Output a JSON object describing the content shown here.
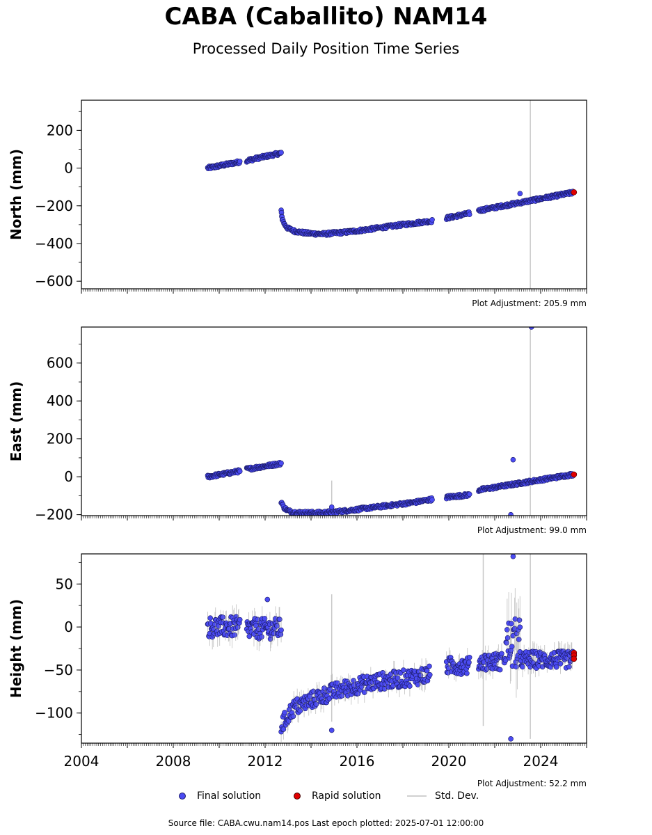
{
  "title": "CABA (Caballito) NAM14",
  "subtitle": "Processed Daily Position Time Series",
  "legend": {
    "final": "Final solution",
    "rapid": "Rapid solution",
    "std": "Std. Dev."
  },
  "footer": "Source file: CABA.cwu.nam14.pos  Last epoch plotted: 2025-07-01 12:00:00",
  "colors": {
    "final": "#4b4bf2",
    "final_edge": "#1a1a66",
    "rapid": "#e00000",
    "std": "#c8c8c8"
  },
  "chart_data": [
    {
      "type": "scatter",
      "ylabel": "North (mm)",
      "adjustment": "Plot Adjustment: 205.9 mm",
      "xlim": [
        2004,
        2026
      ],
      "ylim": [
        -640,
        360
      ],
      "yticks": [
        -600,
        -400,
        -200,
        0,
        200
      ],
      "segments": [
        {
          "x": [
            2009.5,
            2010.9
          ],
          "y": [
            0,
            33
          ]
        },
        {
          "x": [
            2011.2,
            2012.7
          ],
          "y": [
            40,
            80
          ]
        }
      ],
      "curve": {
        "x": [
          2012.7,
          2012.75,
          2012.85,
          2013.0,
          2013.3,
          2013.8,
          2014.5,
          2015.5,
          2016.5,
          2017.5,
          2018.5,
          2019.3
        ],
        "y": [
          -230,
          -270,
          -300,
          -320,
          -335,
          -345,
          -350,
          -340,
          -325,
          -308,
          -292,
          -280
        ]
      },
      "segments2": [
        {
          "x": [
            2019.9,
            2020.9
          ],
          "y": [
            -265,
            -240
          ]
        },
        {
          "x": [
            2021.3,
            2025.4
          ],
          "y": [
            -225,
            -130
          ]
        }
      ],
      "outliers": [
        {
          "x": 2023.1,
          "y": -135
        }
      ],
      "rapid": {
        "x": [
          2025.45
        ],
        "y": [
          -128
        ]
      },
      "stdlines": [
        {
          "x": 2023.55,
          "y0": -640,
          "y1": 360
        }
      ]
    },
    {
      "type": "scatter",
      "ylabel": "East (mm)",
      "adjustment": "Plot Adjustment: 99.0 mm",
      "xlim": [
        2004,
        2026
      ],
      "ylim": [
        -205,
        790
      ],
      "yticks": [
        -200,
        0,
        200,
        400,
        600
      ],
      "segments": [
        {
          "x": [
            2009.5,
            2010.9
          ],
          "y": [
            0,
            30
          ]
        },
        {
          "x": [
            2011.2,
            2012.7
          ],
          "y": [
            40,
            70
          ]
        }
      ],
      "curve": {
        "x": [
          2012.7,
          2012.8,
          2013.0,
          2013.3,
          2013.8,
          2014.5,
          2015.5,
          2016.5,
          2017.5,
          2018.5,
          2019.3
        ],
        "y": [
          -130,
          -160,
          -180,
          -188,
          -190,
          -190,
          -180,
          -165,
          -150,
          -135,
          -118
        ]
      },
      "segments2": [
        {
          "x": [
            2019.9,
            2020.9
          ],
          "y": [
            -108,
            -95
          ]
        },
        {
          "x": [
            2021.3,
            2025.4
          ],
          "y": [
            -70,
            12
          ]
        }
      ],
      "outliers": [
        {
          "x": 2022.8,
          "y": 90
        },
        {
          "x": 2022.7,
          "y": -200
        },
        {
          "x": 2014.9,
          "y": -160
        },
        {
          "x": 2023.6,
          "y": 790
        }
      ],
      "rapid": {
        "x": [
          2025.45
        ],
        "y": [
          12
        ]
      },
      "stdlines": [
        {
          "x": 2014.9,
          "y0": -190,
          "y1": -20
        },
        {
          "x": 2023.55,
          "y0": -205,
          "y1": 790
        }
      ]
    },
    {
      "type": "scatter",
      "ylabel": "Height (mm)",
      "adjustment": "Plot Adjustment: 52.2 mm",
      "xlim": [
        2004,
        2026
      ],
      "ylim": [
        -135,
        85
      ],
      "yticks": [
        -100,
        -50,
        0,
        50
      ],
      "xticks": [
        2004,
        2008,
        2012,
        2016,
        2020,
        2024
      ],
      "segments": [
        {
          "x": [
            2009.5,
            2010.9
          ],
          "y": [
            0,
            0
          ],
          "spread": 12
        },
        {
          "x": [
            2011.2,
            2012.7
          ],
          "y": [
            -2,
            -2
          ],
          "spread": 12
        }
      ],
      "curve": {
        "x": [
          2012.7,
          2013.2,
          2014.0,
          2015.0,
          2016.0,
          2017.0,
          2018.0,
          2019.2
        ],
        "y": [
          -115,
          -95,
          -85,
          -75,
          -68,
          -63,
          -60,
          -55
        ],
        "spread": 10
      },
      "segments2": [
        {
          "x": [
            2019.9,
            2020.9
          ],
          "y": [
            -45,
            -45
          ],
          "spread": 10
        },
        {
          "x": [
            2021.3,
            2022.3
          ],
          "y": [
            -40,
            -40
          ],
          "spread": 10
        },
        {
          "x": [
            2022.4,
            2023.1
          ],
          "y": [
            -20,
            -20
          ],
          "spread": 30
        },
        {
          "x": [
            2023.1,
            2025.4
          ],
          "y": [
            -38,
            -38
          ],
          "spread": 10
        }
      ],
      "outliers": [
        {
          "x": 2012.1,
          "y": 32
        },
        {
          "x": 2022.8,
          "y": 82
        },
        {
          "x": 2022.7,
          "y": -130
        },
        {
          "x": 2014.9,
          "y": -120
        }
      ],
      "rapid": {
        "x": [
          2025.45,
          2025.45,
          2025.45
        ],
        "y": [
          -30,
          -33,
          -37
        ]
      },
      "stdlines": [
        {
          "x": 2014.9,
          "y0": -110,
          "y1": 38
        },
        {
          "x": 2021.5,
          "y0": -115,
          "y1": 85
        },
        {
          "x": 2023.55,
          "y0": -130,
          "y1": 85
        }
      ]
    }
  ]
}
